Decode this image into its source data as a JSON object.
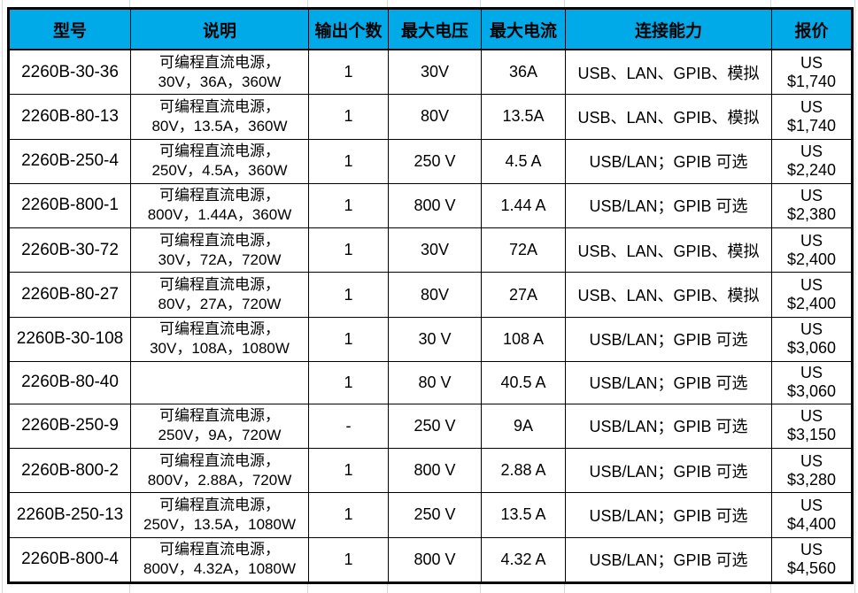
{
  "colors": {
    "header_bg": "#00A9E8",
    "border": "#000000",
    "gridline": "#D8D8D8",
    "text": "#000000"
  },
  "table": {
    "columns": [
      "型号",
      "说明",
      "输出个数",
      "最大电压",
      "最大电流",
      "连接能力",
      "报价"
    ],
    "rows": [
      {
        "model": "2260B-30-36",
        "desc": "可编程直流电源，\n30V，36A，360W",
        "outputs": "1",
        "voltage": "30V",
        "current": "36A",
        "connectivity": "USB、LAN、GPIB、模拟",
        "price": "US $1,740"
      },
      {
        "model": "2260B-80-13",
        "desc": "可编程直流电源，\n80V，13.5A，360W",
        "outputs": "1",
        "voltage": "80V",
        "current": "13.5A",
        "connectivity": "USB、LAN、GPIB、模拟",
        "price": "US $1,740"
      },
      {
        "model": "2260B-250-4",
        "desc": "可编程直流电源，\n250V，4.5A，360W",
        "outputs": "1",
        "voltage": "250 V",
        "current": "4.5 A",
        "connectivity": "USB/LAN；GPIB 可选",
        "price": "US $2,240"
      },
      {
        "model": "2260B-800-1",
        "desc": "可编程直流电源，\n800V，1.44A，360W",
        "outputs": "1",
        "voltage": "800 V",
        "current": "1.44 A",
        "connectivity": "USB/LAN；GPIB 可选",
        "price": "US $2,380"
      },
      {
        "model": "2260B-30-72",
        "desc": "可编程直流电源，\n30V，72A，720W",
        "outputs": "1",
        "voltage": "30V",
        "current": "72A",
        "connectivity": "USB、LAN、GPIB、模拟",
        "price": "US $2,400"
      },
      {
        "model": "2260B-80-27",
        "desc": "可编程直流电源，\n80V，27A，720W",
        "outputs": "1",
        "voltage": "80V",
        "current": "27A",
        "connectivity": "USB、LAN、GPIB、模拟",
        "price": "US $2,400"
      },
      {
        "model": "2260B-30-108",
        "desc": "可编程直流电源，\n30V，108A，1080W",
        "outputs": "1",
        "voltage": "30 V",
        "current": "108 A",
        "connectivity": "USB/LAN；GPIB 可选",
        "price": "US $3,060"
      },
      {
        "model": "2260B-80-40",
        "desc": "",
        "outputs": "1",
        "voltage": "80 V",
        "current": "40.5 A",
        "connectivity": "USB/LAN；GPIB 可选",
        "price": "US $3,060"
      },
      {
        "model": "2260B-250-9",
        "desc": "可编程直流电源，\n250V，9A，720W",
        "outputs": "-",
        "voltage": "250 V",
        "current": "9A",
        "connectivity": "USB/LAN；GPIB 可选",
        "price": "US $3,150"
      },
      {
        "model": "2260B-800-2",
        "desc": "可编程直流电源，\n800V，2.88A，720W",
        "outputs": "1",
        "voltage": "800 V",
        "current": "2.88 A",
        "connectivity": "USB/LAN；GPIB 可选",
        "price": "US $3,280"
      },
      {
        "model": "2260B-250-13",
        "desc": "可编程直流电源，\n250V，13.5A，1080W",
        "outputs": "1",
        "voltage": "250 V",
        "current": "13.5 A",
        "connectivity": "USB/LAN；GPIB 可选",
        "price": "US $4,400"
      },
      {
        "model": "2260B-800-4",
        "desc": "可编程直流电源，\n800V，4.32A，1080W",
        "outputs": "1",
        "voltage": "800 V",
        "current": "4.32 A",
        "connectivity": "USB/LAN；GPIB 可选",
        "price": "US $4,560"
      }
    ]
  }
}
